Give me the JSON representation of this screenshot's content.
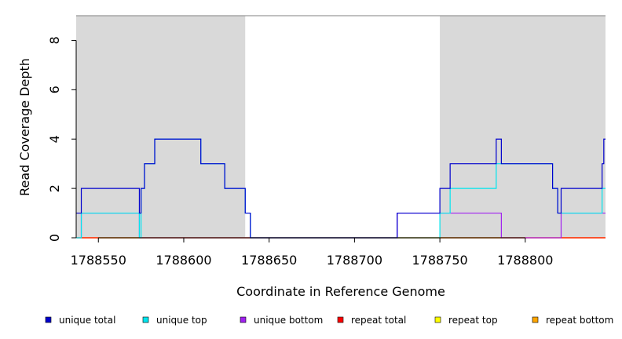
{
  "chart_data": {
    "type": "line",
    "title": "",
    "xlabel": "Coordinate in Reference Genome",
    "ylabel": "Read Coverage Depth",
    "xlim": [
      1788537,
      1788847
    ],
    "ylim": [
      0,
      9
    ],
    "x_ticks": [
      1788550,
      1788600,
      1788650,
      1788700,
      1788750,
      1788800
    ],
    "y_ticks": [
      0,
      2,
      4,
      6,
      8
    ],
    "shaded_regions": [
      {
        "start": 1788537,
        "end": 1788636,
        "color": "#d9d9d9"
      },
      {
        "start": 1788750,
        "end": 1788847,
        "color": "#d9d9d9"
      }
    ],
    "legend_position": "bottom",
    "series": [
      {
        "name": "unique total",
        "color": "#0000cd",
        "steps": [
          [
            1788537,
            1
          ],
          [
            1788540,
            2
          ],
          [
            1788574,
            1
          ],
          [
            1788575,
            2
          ],
          [
            1788577,
            3
          ],
          [
            1788583,
            4
          ],
          [
            1788610,
            3
          ],
          [
            1788624,
            2
          ],
          [
            1788636,
            1
          ],
          [
            1788639,
            0
          ],
          [
            1788725,
            1
          ],
          [
            1788750,
            2
          ],
          [
            1788756,
            3
          ],
          [
            1788783,
            4
          ],
          [
            1788786,
            3
          ],
          [
            1788816,
            2
          ],
          [
            1788819,
            1
          ],
          [
            1788821,
            2
          ],
          [
            1788845,
            3
          ],
          [
            1788846,
            4
          ],
          [
            1788847,
            4
          ]
        ]
      },
      {
        "name": "unique top",
        "color": "#00e5ee",
        "steps": [
          [
            1788537,
            0
          ],
          [
            1788540,
            1
          ],
          [
            1788574,
            0
          ],
          [
            1788575,
            2
          ],
          [
            1788577,
            3
          ],
          [
            1788583,
            4
          ],
          [
            1788610,
            3
          ],
          [
            1788624,
            2
          ],
          [
            1788636,
            1
          ],
          [
            1788639,
            0
          ],
          [
            1788750,
            1
          ],
          [
            1788756,
            2
          ],
          [
            1788783,
            3
          ],
          [
            1788786,
            3
          ],
          [
            1788816,
            2
          ],
          [
            1788819,
            1
          ],
          [
            1788845,
            2
          ],
          [
            1788847,
            2
          ]
        ]
      },
      {
        "name": "unique bottom",
        "color": "#a020f0",
        "steps": [
          [
            1788537,
            0
          ],
          [
            1788540,
            1
          ],
          [
            1788574,
            0
          ],
          [
            1788725,
            1
          ],
          [
            1788786,
            0
          ],
          [
            1788821,
            1
          ],
          [
            1788845,
            1
          ],
          [
            1788847,
            1
          ]
        ]
      },
      {
        "name": "repeat total",
        "color": "#ff0000",
        "steps": [
          [
            1788537,
            0
          ],
          [
            1788847,
            0
          ]
        ]
      },
      {
        "name": "repeat top",
        "color": "#ffff00",
        "steps": [
          [
            1788537,
            0
          ],
          [
            1788847,
            0
          ]
        ]
      },
      {
        "name": "repeat bottom",
        "color": "#ffa500",
        "steps": [
          [
            1788537,
            0
          ],
          [
            1788847,
            0
          ]
        ]
      }
    ]
  }
}
